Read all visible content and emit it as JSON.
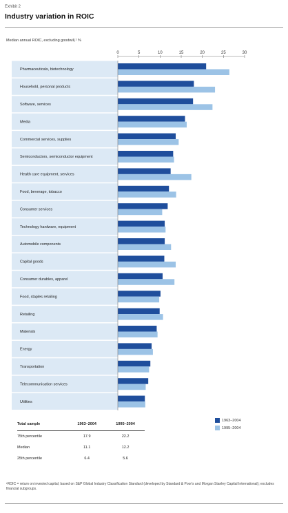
{
  "exhibit": {
    "label": "Exhibit 2",
    "title": "Industry variation in ROIC"
  },
  "colors": {
    "series1": "#1f4e9c",
    "series2": "#9cc3e6",
    "row_band": "#dce9f5",
    "axis": "#777777"
  },
  "chart_data": {
    "type": "bar",
    "orientation": "horizontal",
    "title": "Median annual ROIC, excluding goodwill,¹ %",
    "xlim": [
      0,
      30
    ],
    "xticks": [
      0,
      5,
      10,
      15,
      20,
      25,
      30
    ],
    "grid": false,
    "legend_position": "bottom-right",
    "categories": [
      "Pharmaceuticals, biotechnology",
      "Household, personal products",
      "Software, services",
      "Media",
      "Commercial services, supplies",
      "Semiconductors, semiconductor equipment",
      "Health care equipment, services",
      "Food, beverage, tobacco",
      "Consumer services",
      "Technology hardware, equipment",
      "Automobile components",
      "Capital goods",
      "Consumer durables, apparel",
      "Food, staples retailing",
      "Retailing",
      "Materials",
      "Energy",
      "Transportation",
      "Telecommunication services",
      "Utilities"
    ],
    "series": [
      {
        "name": "1963–2004",
        "values": [
          20.9,
          18.0,
          17.8,
          15.9,
          13.7,
          13.1,
          12.5,
          12.1,
          11.8,
          11.1,
          11.1,
          11.0,
          10.6,
          10.1,
          9.9,
          9.2,
          8.0,
          7.7,
          7.2,
          6.4
        ]
      },
      {
        "name": "1995–2004",
        "values": [
          26.4,
          23.0,
          22.4,
          16.3,
          14.4,
          13.3,
          17.4,
          13.8,
          10.5,
          11.3,
          12.6,
          13.7,
          13.4,
          9.8,
          10.7,
          9.4,
          8.3,
          7.4,
          6.6,
          6.5
        ]
      }
    ]
  },
  "summary_table": {
    "headers": [
      "Total sample",
      "1963–2004",
      "1995–2004"
    ],
    "rows": [
      [
        "75th percentile",
        "17.9",
        "22.2"
      ],
      [
        "Median",
        "11.1",
        "12.2"
      ],
      [
        "25th percentile",
        "6.4",
        "5.6"
      ]
    ]
  },
  "footnote": "¹ROIC = return on invested capital; based on S&P Global Industry Classification Standard (developed by Standard & Poor's and Morgan Stanley Capital International); excludes financial subgroups."
}
